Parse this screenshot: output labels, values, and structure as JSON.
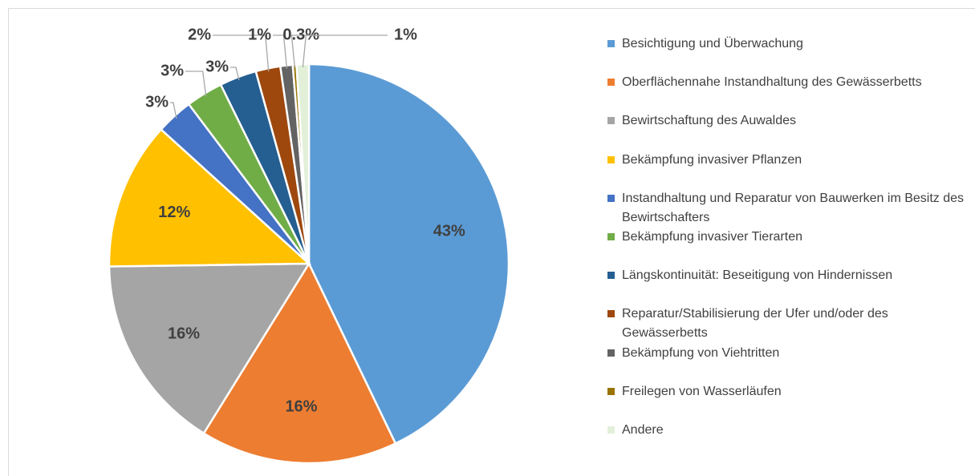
{
  "chart_data": {
    "type": "pie",
    "categories": [
      "Besichtigung und Überwachung",
      "Oberflächennahe Instandhaltung des Gewässerbetts",
      "Bewirtschaftung des Auwaldes",
      "Bekämpfung invasiver Pflanzen",
      "Instandhaltung und Reparatur von Bauwerken im Besitz des Bewirtschafters",
      "Bekämpfung invasiver Tierarten",
      "Längskontinuität: Beseitigung von Hindernissen",
      "Reparatur/Stabilisierung der Ufer und/oder des Gewässerbetts",
      "Bekämpfung von Viehtritten",
      "Freilegen von Wasserläufen",
      "Andere"
    ],
    "values": [
      43,
      16,
      16,
      12,
      3,
      3,
      3,
      2,
      1,
      0.3,
      1
    ],
    "value_labels": [
      "43%",
      "16%",
      "16%",
      "12%",
      "3%",
      "3%",
      "3%",
      "2%",
      "1%",
      "0.3%",
      "1%"
    ],
    "colors": [
      "#5b9bd5",
      "#ed7d31",
      "#a5a5a5",
      "#ffc000",
      "#4472c4",
      "#70ad47",
      "#255e91",
      "#9e480e",
      "#636363",
      "#997300",
      "#e2f0d9"
    ],
    "legend": "right"
  }
}
